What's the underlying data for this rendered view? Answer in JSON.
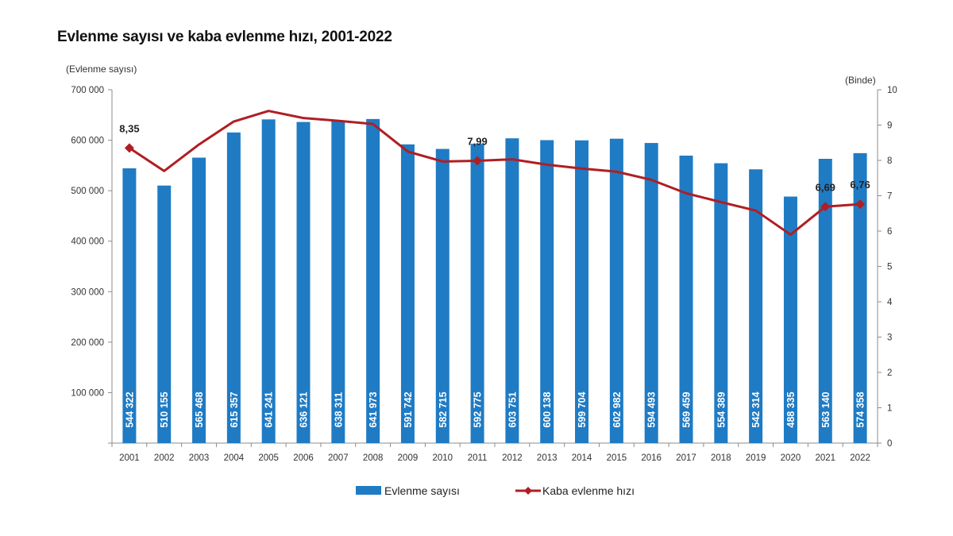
{
  "title": "Evlenme sayısı ve kaba evlenme hızı, 2001-2022",
  "chart_data": {
    "type": "bar+line",
    "title": "Evlenme sayısı ve kaba evlenme hızı, 2001-2022",
    "categories": [
      "2001",
      "2002",
      "2003",
      "2004",
      "2005",
      "2006",
      "2007",
      "2008",
      "2009",
      "2010",
      "2011",
      "2012",
      "2013",
      "2014",
      "2015",
      "2016",
      "2017",
      "2018",
      "2019",
      "2020",
      "2021",
      "2022"
    ],
    "series": [
      {
        "name": "Evlenme sayısı",
        "type": "bar",
        "axis": "left",
        "color": "#1f7bc4",
        "values": [
          544322,
          510155,
          565468,
          615357,
          641241,
          636121,
          638311,
          641973,
          591742,
          582715,
          592775,
          603751,
          600138,
          599704,
          602982,
          594493,
          569459,
          554389,
          542314,
          488335,
          563140,
          574358
        ],
        "labels": [
          "544 322",
          "510 155",
          "565 468",
          "615 357",
          "641 241",
          "636 121",
          "638 311",
          "641 973",
          "591 742",
          "582 715",
          "592 775",
          "603 751",
          "600 138",
          "599 704",
          "602 982",
          "594 493",
          "569 459",
          "554 389",
          "542 314",
          "488 335",
          "563 140",
          "574 358"
        ]
      },
      {
        "name": "Kaba evlenme hızı",
        "type": "line",
        "axis": "right",
        "color": "#b01e23",
        "values": [
          8.35,
          7.7,
          8.45,
          9.1,
          9.4,
          9.2,
          9.12,
          9.03,
          8.25,
          7.97,
          7.99,
          8.03,
          7.88,
          7.77,
          7.68,
          7.45,
          7.07,
          6.82,
          6.58,
          5.9,
          6.69,
          6.76
        ],
        "annotations": [
          {
            "index": 0,
            "text": "8,35"
          },
          {
            "index": 10,
            "text": "7,99"
          },
          {
            "index": 20,
            "text": "6,69"
          },
          {
            "index": 21,
            "text": "6,76"
          }
        ],
        "markers": [
          0,
          10,
          20,
          21
        ]
      }
    ],
    "y_left": {
      "label": "(Evlenme sayısı)",
      "range": [
        0,
        700000
      ],
      "ticks": [
        0,
        100000,
        200000,
        300000,
        400000,
        500000,
        600000,
        700000
      ],
      "tick_labels": [
        "",
        "100 000",
        "200 000",
        "300 000",
        "400 000",
        "500 000",
        "600 000",
        "700 000"
      ]
    },
    "y_right": {
      "label": "(Binde)",
      "range": [
        0,
        10
      ],
      "ticks": [
        0,
        1,
        2,
        3,
        4,
        5,
        6,
        7,
        8,
        9,
        10
      ],
      "tick_labels": [
        "0",
        "1",
        "2",
        "3",
        "4",
        "5",
        "6",
        "7",
        "8",
        "9",
        "10"
      ]
    },
    "grid": false,
    "legend": {
      "position": "bottom",
      "entries": [
        "Evlenme sayısı",
        "Kaba evlenme hızı"
      ]
    }
  }
}
